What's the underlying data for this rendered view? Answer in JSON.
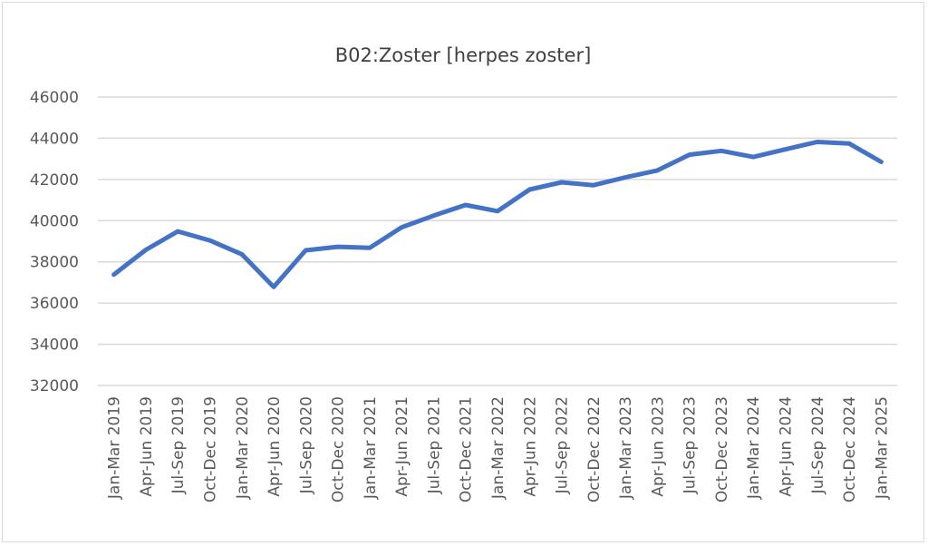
{
  "chart_data": {
    "type": "line",
    "title": "B02:Zoster [herpes zoster]",
    "xlabel": "",
    "ylabel": "",
    "ylim": [
      32000,
      46000
    ],
    "yticks": [
      "32000",
      "34000",
      "36000",
      "38000",
      "40000",
      "42000",
      "44000",
      "46000"
    ],
    "grid": true,
    "legend": "none",
    "line_color": "#4472c4",
    "categories": [
      "Jan-Mar 2019",
      "Apr-Jun 2019",
      "Jul-Sep 2019",
      "Oct-Dec 2019",
      "Jan-Mar 2020",
      "Apr-Jun 2020",
      "Jul-Sep 2020",
      "Oct-Dec 2020",
      "Jan-Mar 2021",
      "Apr-Jun 2021",
      "Jul-Sep 2021",
      "Oct-Dec 2021",
      "Jan-Mar 2022",
      "Apr-Jun 2022",
      "Jul-Sep 2022",
      "Oct-Dec 2022",
      "Jan-Mar 2023",
      "Apr-Jun 2023",
      "Jul-Sep 2023",
      "Oct-Dec 2023",
      "Jan-Mar 2024",
      "Apr-Jun 2024",
      "Jul-Sep 2024",
      "Oct-Dec 2024",
      "Jan-Mar 2025"
    ],
    "series": [
      {
        "values": [
          37380,
          38580,
          39480,
          39040,
          38370,
          36780,
          38560,
          38730,
          38680,
          39680,
          40240,
          40760,
          40460,
          41510,
          41860,
          41720,
          42100,
          42440,
          43200,
          43390,
          43090,
          43460,
          43820,
          43740,
          42850
        ]
      }
    ]
  }
}
